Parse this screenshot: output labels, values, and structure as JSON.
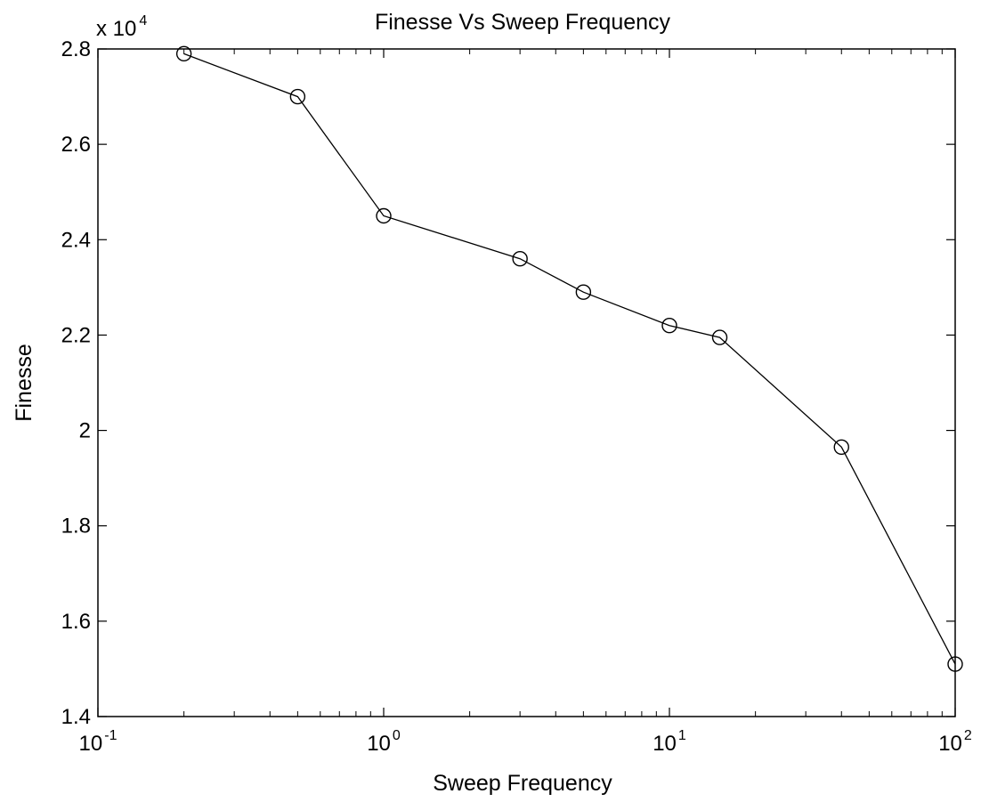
{
  "chart_data": {
    "type": "line",
    "title": "Finesse Vs Sweep Frequency",
    "xlabel": "Sweep Frequency",
    "ylabel": "Finesse",
    "xscale": "log",
    "xlim": [
      0.1,
      100
    ],
    "ylim": [
      14000,
      28000
    ],
    "y_multiplier_label": "x 10",
    "y_multiplier_exponent": "4",
    "x_ticks": [
      {
        "value": 0.1,
        "base": "10",
        "exp": "-1"
      },
      {
        "value": 1,
        "base": "10",
        "exp": "0"
      },
      {
        "value": 10,
        "base": "10",
        "exp": "1"
      },
      {
        "value": 100,
        "base": "10",
        "exp": "2"
      }
    ],
    "y_ticks": [
      {
        "value": 14000,
        "label": "1.4"
      },
      {
        "value": 16000,
        "label": "1.6"
      },
      {
        "value": 18000,
        "label": "1.8"
      },
      {
        "value": 20000,
        "label": "2"
      },
      {
        "value": 22000,
        "label": "2.2"
      },
      {
        "value": 24000,
        "label": "2.4"
      },
      {
        "value": 26000,
        "label": "2.6"
      },
      {
        "value": 28000,
        "label": "2.8"
      }
    ],
    "grid": false,
    "line_color": "#000000",
    "marker": "circle-open",
    "series": [
      {
        "x": [
          0.2,
          0.5,
          1,
          3,
          5,
          10,
          15,
          40,
          100
        ],
        "y": [
          27900,
          27000,
          24500,
          23600,
          22900,
          22200,
          21950,
          19650,
          15100
        ]
      }
    ]
  }
}
